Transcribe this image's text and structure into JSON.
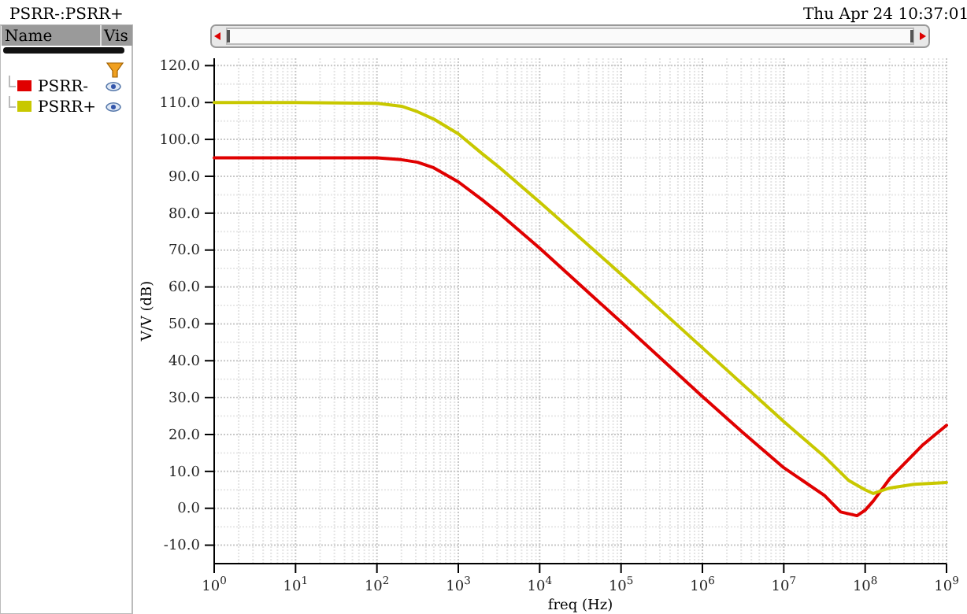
{
  "chart_data": {
    "type": "line",
    "title": "PSRR-:PSRR+",
    "xlabel": "freq (Hz)",
    "ylabel": "V/V (dB)",
    "annotations": [
      "Thu Apr 24 10:37:01",
      "Name",
      "Vis"
    ],
    "log": "x",
    "grid": true,
    "legend": "left",
    "line_style": "solid",
    "marker": "none",
    "xlim": [
      1,
      1000000000
    ],
    "ylim": [
      -15,
      122
    ],
    "xticks": [
      {
        "value": 1,
        "label": "10$^{0}$"
      },
      {
        "value": 10,
        "label": "10$^{1}$"
      },
      {
        "value": 100,
        "label": "10$^{2}$"
      },
      {
        "value": 1000,
        "label": "10$^{3}$"
      },
      {
        "value": 10000,
        "label": "10$^{4}$"
      },
      {
        "value": 100000,
        "label": "10$^{5}$"
      },
      {
        "value": 1000000,
        "label": "10$^{6}$"
      },
      {
        "value": 10000000,
        "label": "10$^{7}$"
      },
      {
        "value": 100000000,
        "label": "10$^{8}$"
      },
      {
        "value": 1000000000,
        "label": "10$^{9}$"
      }
    ],
    "yticks": [
      {
        "value": -10,
        "label": "-10.0"
      },
      {
        "value": 0,
        "label": "0.0"
      },
      {
        "value": 10,
        "label": "10.0"
      },
      {
        "value": 20,
        "label": "20.0"
      },
      {
        "value": 30,
        "label": "30.0"
      },
      {
        "value": 40,
        "label": "40.0"
      },
      {
        "value": 50,
        "label": "50.0"
      },
      {
        "value": 60,
        "label": "60.0"
      },
      {
        "value": 70,
        "label": "70.0"
      },
      {
        "value": 80,
        "label": "80.0"
      },
      {
        "value": 90,
        "label": "90.0"
      },
      {
        "value": 100,
        "label": "100.0"
      },
      {
        "value": 110,
        "label": "110.0"
      },
      {
        "value": 120,
        "label": "120.0"
      }
    ],
    "series": [
      {
        "name": "PSRR-",
        "color": "#e00000",
        "x": [
          1,
          10,
          100,
          200,
          316,
          500,
          1000,
          2000,
          3160,
          10000,
          100000,
          1000000,
          3160000,
          10000000,
          31600000,
          50000000,
          79400000,
          100000000,
          126000000,
          200000000,
          316000000,
          500000000,
          1000000000
        ],
        "values": [
          95,
          95,
          95,
          94.5,
          93.8,
          92.3,
          88.5,
          83.5,
          80,
          70.5,
          50.5,
          30.3,
          20.5,
          11,
          3.5,
          -1,
          -2,
          -0.5,
          2,
          8,
          12.5,
          17,
          22.5
        ]
      },
      {
        "name": "PSRR+",
        "color": "#c8c800",
        "x": [
          1,
          10,
          100,
          200,
          316,
          500,
          1000,
          2000,
          3160,
          10000,
          100000,
          1000000,
          10000000,
          31600000,
          63100000,
          100000000,
          126000000,
          200000000,
          398000000,
          1000000000
        ],
        "values": [
          110,
          110,
          109.8,
          109,
          107.5,
          105.5,
          101.5,
          96,
          92.5,
          83,
          63.5,
          43.5,
          23.5,
          14,
          7.5,
          5,
          4,
          5.5,
          6.5,
          7
        ]
      }
    ]
  }
}
